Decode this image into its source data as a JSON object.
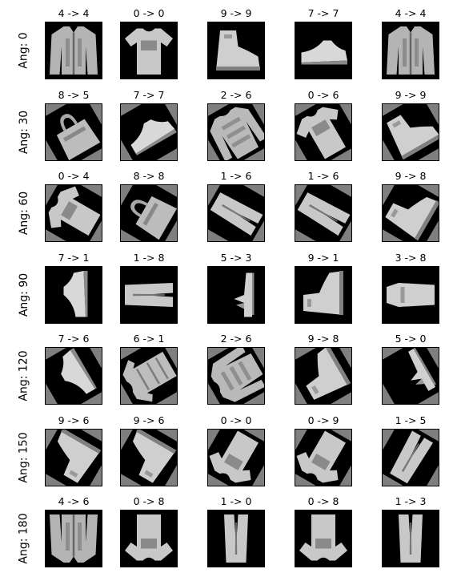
{
  "rows": [
    {
      "label": "Ang: 0",
      "angle": 0,
      "titles": [
        "4 -> 4",
        "0 -> 0",
        "9 -> 9",
        "7 -> 7",
        "4 -> 4"
      ]
    },
    {
      "label": "Ang: 30",
      "angle": 30,
      "titles": [
        "8 -> 5",
        "7 -> 7",
        "2 -> 6",
        "0 -> 6",
        "9 -> 9"
      ]
    },
    {
      "label": "Ang: 60",
      "angle": 60,
      "titles": [
        "0 -> 4",
        "8 -> 8",
        "1 -> 6",
        "1 -> 6",
        "9 -> 8"
      ]
    },
    {
      "label": "Ang: 90",
      "angle": 90,
      "titles": [
        "7 -> 1",
        "1 -> 8",
        "5 -> 3",
        "9 -> 1",
        "3 -> 8"
      ]
    },
    {
      "label": "Ang: 120",
      "angle": 120,
      "titles": [
        "7 -> 6",
        "6 -> 1",
        "2 -> 6",
        "9 -> 8",
        "5 -> 0"
      ]
    },
    {
      "label": "Ang: 150",
      "angle": 150,
      "titles": [
        "9 -> 6",
        "9 -> 6",
        "0 -> 0",
        "0 -> 9",
        "1 -> 5"
      ]
    },
    {
      "label": "Ang: 180",
      "angle": 180,
      "titles": [
        "4 -> 6",
        "0 -> 8",
        "1 -> 0",
        "0 -> 8",
        "1 -> 3"
      ]
    }
  ]
}
